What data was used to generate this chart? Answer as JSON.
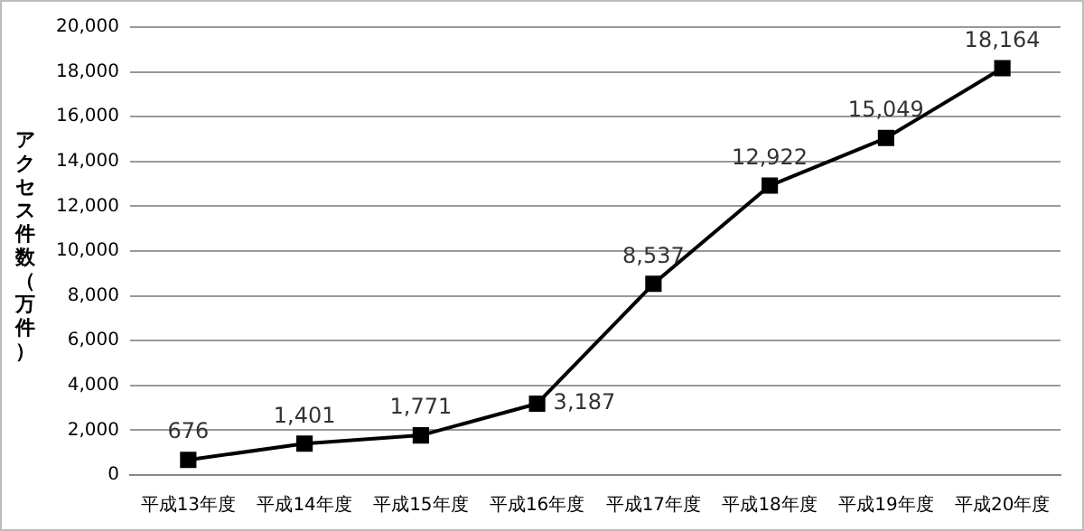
{
  "chart_data": {
    "type": "line",
    "ylabel": "アクセス件数（万件）",
    "categories": [
      "平成13年度",
      "平成14年度",
      "平成15年度",
      "平成16年度",
      "平成17年度",
      "平成18年度",
      "平成19年度",
      "平成20年度"
    ],
    "series": [
      {
        "color": "#000000",
        "values": [
          676,
          1401,
          1771,
          3187,
          8537,
          12922,
          15049,
          18164
        ],
        "value_labels": [
          "676",
          "1,401",
          "1,771",
          "3,187",
          "8,537",
          "12,922",
          "15,049",
          "18,164"
        ]
      }
    ],
    "ylim": [
      0,
      20000
    ],
    "yticks": [
      {
        "value": 0,
        "label": "0"
      },
      {
        "value": 2000,
        "label": "2,000"
      },
      {
        "value": 4000,
        "label": "4,000"
      },
      {
        "value": 6000,
        "label": "6,000"
      },
      {
        "value": 8000,
        "label": "8,000"
      },
      {
        "value": 10000,
        "label": "10,000"
      },
      {
        "value": 12000,
        "label": "12,000"
      },
      {
        "value": 14000,
        "label": "14,000"
      },
      {
        "value": 16000,
        "label": "16,000"
      },
      {
        "value": 18000,
        "label": "18,000"
      },
      {
        "value": 20000,
        "label": "20,000"
      }
    ],
    "grid": "y",
    "legend": false,
    "marker": "square",
    "line_style": "solid"
  }
}
